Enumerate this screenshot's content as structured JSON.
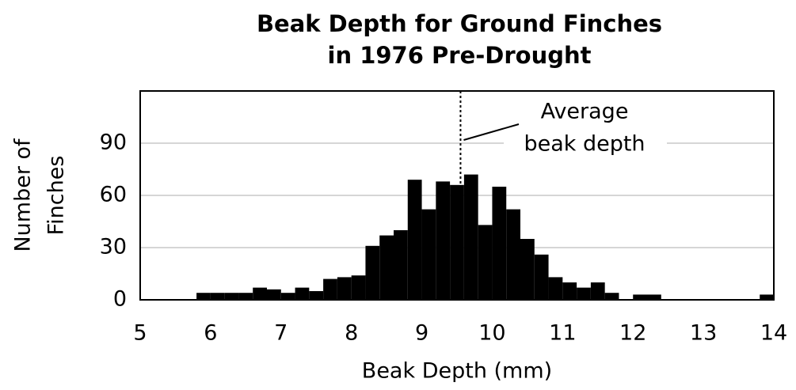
{
  "chart_data": {
    "type": "histogram",
    "title": [
      "Beak Depth for Ground Finches",
      "in 1976 Pre-Drought"
    ],
    "xlabel": "Beak Depth (mm)",
    "ylabel": [
      "Number of",
      "Finches"
    ],
    "bins": [
      5,
      5.2,
      5.4,
      5.6,
      5.8,
      6,
      6.2,
      6.4,
      6.6,
      6.8,
      7,
      7.2,
      7.4,
      7.6,
      7.8,
      8,
      8.2,
      8.4,
      8.6,
      8.8,
      9,
      9.2,
      9.4,
      9.6,
      9.8,
      10,
      10.2,
      10.4,
      10.6,
      10.8,
      11,
      11.2,
      11.4,
      11.6,
      11.8,
      12,
      12.2,
      12.4,
      12.6,
      12.8,
      13,
      13.2,
      13.4,
      13.6,
      13.8,
      14
    ],
    "counts": [
      0,
      0,
      0,
      0,
      4,
      4,
      4,
      4,
      7,
      6,
      4,
      7,
      5,
      12,
      13,
      14,
      31,
      37,
      40,
      69,
      52,
      68,
      66,
      72,
      43,
      65,
      52,
      35,
      26,
      13,
      10,
      7,
      10,
      4,
      0,
      3,
      3,
      0,
      0,
      0,
      0,
      0,
      0,
      0,
      3
    ],
    "color": "#000000",
    "xlim": [
      5,
      14
    ],
    "xticks": [
      5,
      6,
      7,
      8,
      9,
      10,
      11,
      12,
      13,
      14
    ],
    "ylim": [
      0,
      120
    ],
    "yticks": [
      0,
      30,
      60,
      90
    ],
    "grid": true,
    "annotation": {
      "lines": [
        "Average",
        "beak depth"
      ],
      "x": 9.55
    }
  }
}
